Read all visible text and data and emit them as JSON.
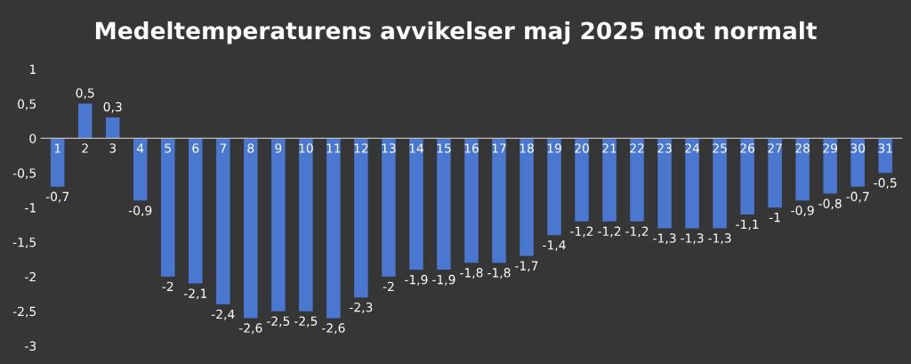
{
  "chart_data": {
    "type": "bar",
    "title": "Medeltemperaturens avvikelser maj 2025 mot normalt",
    "categories": [
      "1",
      "2",
      "3",
      "4",
      "5",
      "6",
      "7",
      "8",
      "9",
      "10",
      "11",
      "12",
      "13",
      "14",
      "15",
      "16",
      "17",
      "18",
      "19",
      "20",
      "21",
      "22",
      "23",
      "24",
      "25",
      "26",
      "27",
      "28",
      "29",
      "30",
      "31"
    ],
    "values": [
      -0.7,
      0.5,
      0.3,
      -0.9,
      -2,
      -2.1,
      -2.4,
      -2.6,
      -2.5,
      -2.5,
      -2.6,
      -2.3,
      -2,
      -1.9,
      -1.9,
      -1.8,
      -1.8,
      -1.7,
      -1.4,
      -1.2,
      -1.2,
      -1.2,
      -1.3,
      -1.3,
      -1.3,
      -1.1,
      -1,
      -0.9,
      -0.8,
      -0.7,
      -0.5
    ],
    "value_labels": [
      "-0,7",
      "0,5",
      "0,3",
      "-0,9",
      "-2",
      "-2,1",
      "-2,4",
      "-2,6",
      "-2,5",
      "-2,5",
      "-2,6",
      "-2,3",
      "-2",
      "-1,9",
      "-1,9",
      "-1,8",
      "-1,8",
      "-1,7",
      "-1,4",
      "-1,2",
      "-1,2",
      "-1,2",
      "-1,3",
      "-1,3",
      "-1,3",
      "-1,1",
      "-1",
      "-0,9",
      "-0,8",
      "-0,7",
      "-0,5"
    ],
    "color": "#4a78d0",
    "ylim": [
      -3,
      1
    ],
    "yticks": [
      {
        "value": 1,
        "label": "1"
      },
      {
        "value": 0.5,
        "label": "0,5"
      },
      {
        "value": 0,
        "label": "0"
      },
      {
        "value": -0.5,
        "label": "-0,5"
      },
      {
        "value": -1,
        "label": "-1"
      },
      {
        "value": -1.5,
        "label": "-1,5"
      },
      {
        "value": -2,
        "label": "-2"
      },
      {
        "value": -2.5,
        "label": "-2,5"
      },
      {
        "value": -3,
        "label": "-3"
      }
    ],
    "grid": false
  }
}
